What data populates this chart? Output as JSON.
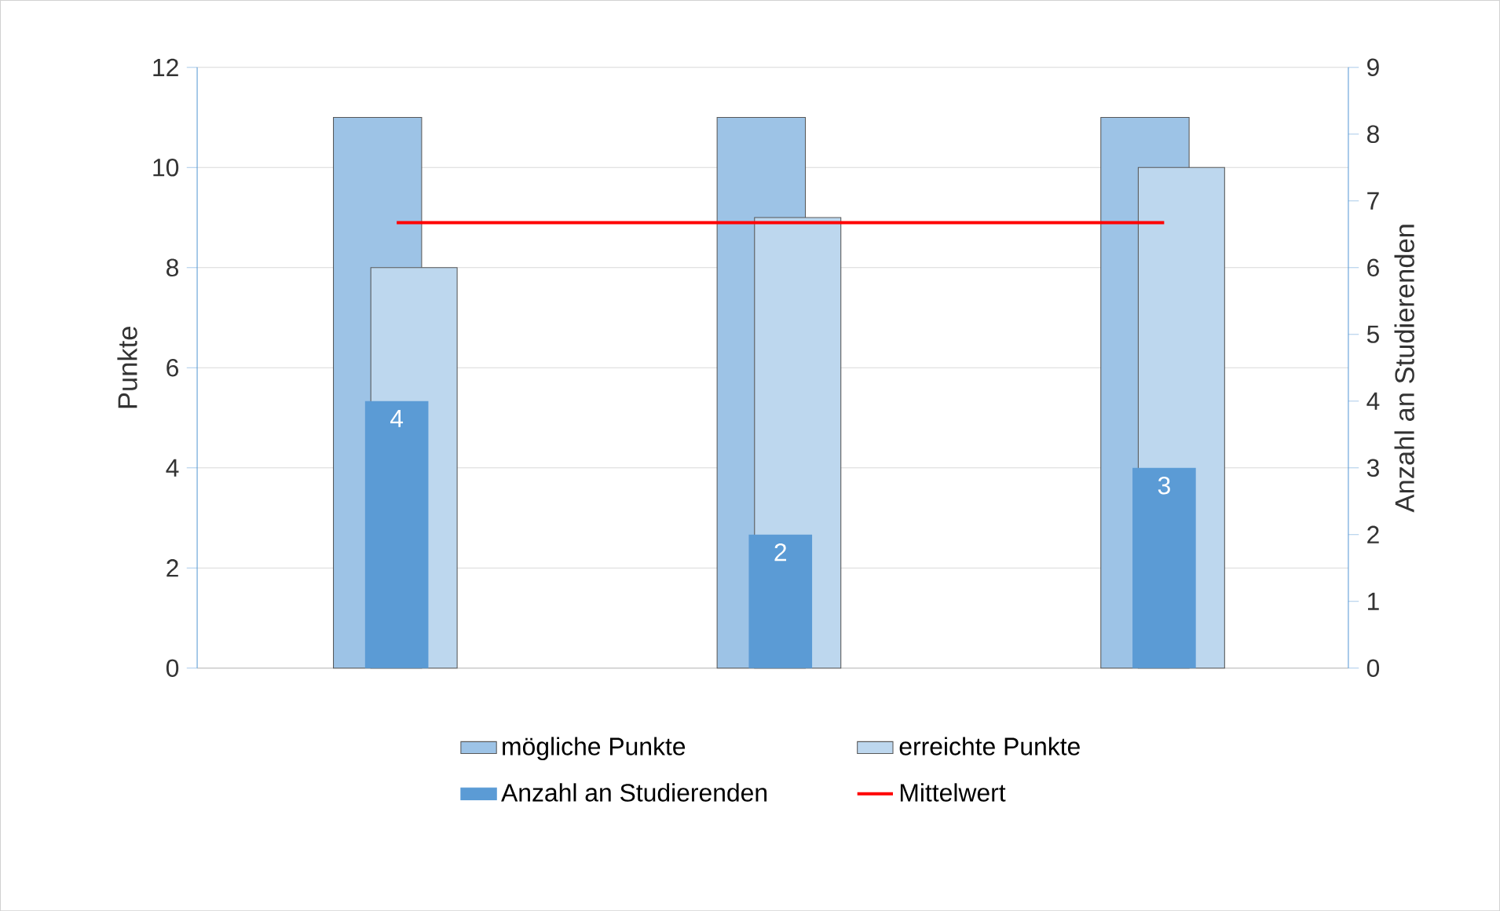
{
  "chart_data": {
    "type": "bar",
    "categories": [
      null,
      null,
      null
    ],
    "ylabel": "Punkte",
    "y2label": "Anzahl an Studierenden",
    "ylim": [
      0,
      12
    ],
    "yticks": [
      0,
      2,
      4,
      6,
      8,
      10,
      12
    ],
    "y2lim": [
      0,
      9
    ],
    "y2ticks": [
      0,
      1,
      2,
      3,
      4,
      5,
      6,
      7,
      8,
      9
    ],
    "grid": "y",
    "legend": "bottom",
    "series": [
      {
        "name": "mögliche Punkte",
        "color": "#9dc3e6",
        "values": [
          11,
          11,
          11
        ]
      },
      {
        "name": "erreichte Punkte",
        "color": "#bdd7ee",
        "values": [
          8,
          9,
          10
        ]
      },
      {
        "name": "Anzahl an Studierenden",
        "color": "#5b9bd5",
        "values": [
          4,
          2,
          3
        ],
        "axis": "y2",
        "data_labels": true
      },
      {
        "name": "Mittelwert",
        "type": "line",
        "color": "#ff0000",
        "values": [
          8.9,
          8.9,
          8.9
        ]
      }
    ]
  }
}
